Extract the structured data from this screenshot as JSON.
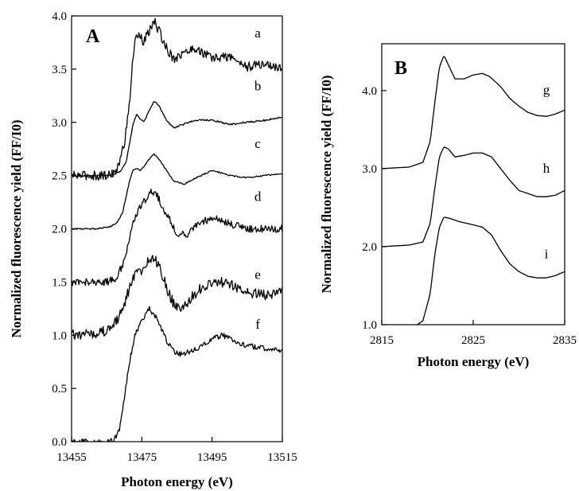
{
  "chart_data": [
    {
      "type": "line",
      "panel_label": "A",
      "xlabel": "Photon energy (eV)",
      "ylabel": "Normalized fluorescence yield (FF/I0)",
      "xlim": [
        13455,
        13515
      ],
      "ylim": [
        0.0,
        4.0
      ],
      "x_ticks": [
        13455,
        13475,
        13495,
        13515
      ],
      "x_tick_labels": [
        "13455",
        "13475",
        "13495",
        "13515"
      ],
      "y_ticks": [
        0.0,
        0.5,
        1.0,
        1.5,
        2.0,
        2.5,
        3.0,
        3.5,
        4.0
      ],
      "y_tick_labels": [
        "0.0",
        "0.5",
        "1.0",
        "1.5",
        "2.0",
        "2.5",
        "3.0",
        "3.5",
        "4.0"
      ],
      "series": [
        {
          "name": "a",
          "noise": 0.045,
          "x": [
            13455,
            13465,
            13468,
            13470,
            13471.5,
            13472.5,
            13473.5,
            13474.5,
            13475.5,
            13477,
            13478.5,
            13480,
            13482,
            13484,
            13487,
            13490,
            13495,
            13500,
            13505,
            13510,
            13515
          ],
          "y": [
            2.5,
            2.5,
            2.55,
            2.8,
            3.2,
            3.6,
            3.85,
            3.8,
            3.75,
            3.85,
            3.95,
            3.85,
            3.7,
            3.6,
            3.65,
            3.7,
            3.6,
            3.62,
            3.52,
            3.55,
            3.5
          ]
        },
        {
          "name": "b",
          "noise": 0.008,
          "x": [
            13455,
            13465,
            13467,
            13469,
            13470.5,
            13471.5,
            13472.5,
            13473.5,
            13474.5,
            13475.5,
            13477,
            13478.5,
            13480,
            13482,
            13484,
            13486,
            13490,
            13495,
            13500,
            13505,
            13510,
            13515
          ],
          "y": [
            2.5,
            2.5,
            2.51,
            2.54,
            2.62,
            2.8,
            2.98,
            3.08,
            3.03,
            3.0,
            3.1,
            3.2,
            3.15,
            3.02,
            2.95,
            2.97,
            3.02,
            3.02,
            2.98,
            3.0,
            3.02,
            3.05
          ]
        },
        {
          "name": "c",
          "noise": 0.006,
          "x": [
            13455,
            13462,
            13466,
            13468,
            13469.5,
            13470.5,
            13471.5,
            13472.5,
            13473.5,
            13474.5,
            13475.5,
            13477,
            13478.5,
            13480,
            13482,
            13484,
            13487,
            13490,
            13495,
            13500,
            13505,
            13510,
            13515
          ],
          "y": [
            2.0,
            2.0,
            2.02,
            2.06,
            2.15,
            2.3,
            2.45,
            2.55,
            2.57,
            2.55,
            2.58,
            2.65,
            2.7,
            2.65,
            2.55,
            2.45,
            2.42,
            2.47,
            2.55,
            2.5,
            2.48,
            2.5,
            2.52
          ]
        },
        {
          "name": "d",
          "noise": 0.035,
          "x": [
            13455,
            13465,
            13468,
            13470,
            13471.5,
            13472.5,
            13473.5,
            13475,
            13476.5,
            13478,
            13479.5,
            13481,
            13483,
            13485,
            13488,
            13491,
            13495,
            13500,
            13505,
            13510,
            13515
          ],
          "y": [
            1.5,
            1.5,
            1.55,
            1.7,
            1.9,
            2.05,
            2.15,
            2.22,
            2.3,
            2.35,
            2.3,
            2.2,
            2.08,
            1.95,
            1.95,
            2.05,
            2.1,
            2.05,
            2.0,
            2.0,
            2.0
          ]
        },
        {
          "name": "e",
          "noise": 0.05,
          "x": [
            13455,
            13462,
            13466,
            13468,
            13470,
            13471.5,
            13473,
            13474.5,
            13476,
            13477.5,
            13479,
            13480.5,
            13482,
            13484,
            13486,
            13489,
            13492,
            13495,
            13498,
            13502,
            13506,
            13510,
            13515
          ],
          "y": [
            1.0,
            1.02,
            1.05,
            1.15,
            1.3,
            1.45,
            1.55,
            1.6,
            1.65,
            1.72,
            1.7,
            1.6,
            1.45,
            1.3,
            1.25,
            1.35,
            1.45,
            1.5,
            1.5,
            1.45,
            1.4,
            1.38,
            1.4
          ]
        },
        {
          "name": "f",
          "noise": 0.025,
          "x": [
            13455,
            13465,
            13467,
            13468.5,
            13470,
            13471.5,
            13473,
            13474.5,
            13476,
            13477,
            13478.5,
            13480,
            13482,
            13484,
            13486,
            13489,
            13492,
            13495,
            13498,
            13501,
            13505,
            13510,
            13515
          ],
          "y": [
            0.0,
            0.0,
            0.02,
            0.1,
            0.4,
            0.75,
            1.0,
            1.1,
            1.2,
            1.25,
            1.2,
            1.1,
            0.95,
            0.85,
            0.82,
            0.85,
            0.9,
            0.97,
            1.0,
            0.95,
            0.9,
            0.88,
            0.85
          ]
        }
      ],
      "curve_label_positions": [
        {
          "name": "a",
          "x": 13508,
          "y": 3.8
        },
        {
          "name": "b",
          "x": 13508,
          "y": 3.3
        },
        {
          "name": "c",
          "x": 13508,
          "y": 2.76
        },
        {
          "name": "d",
          "x": 13508,
          "y": 2.26
        },
        {
          "name": "e",
          "x": 13508,
          "y": 1.53
        },
        {
          "name": "f",
          "x": 13508,
          "y": 1.06
        }
      ]
    },
    {
      "type": "line",
      "panel_label": "B",
      "xlabel": "Photon energy (eV)",
      "ylabel": "Normalized fluorescence yield (FF/I0)",
      "xlim": [
        2815,
        2835
      ],
      "ylim": [
        1.0,
        4.6
      ],
      "x_ticks": [
        2815,
        2825,
        2835
      ],
      "x_tick_labels": [
        "2815",
        "2825",
        "2835"
      ],
      "y_ticks": [
        1.0,
        2.0,
        3.0,
        4.0
      ],
      "y_tick_labels": [
        "1.0",
        "2.0",
        "3.0",
        "4.0"
      ],
      "series": [
        {
          "name": "g",
          "noise": 0,
          "x": [
            2815,
            2818,
            2819.5,
            2820.3,
            2820.8,
            2821.3,
            2821.8,
            2822.2,
            2823,
            2824,
            2825,
            2826,
            2826.8,
            2828,
            2829,
            2830,
            2831,
            2832,
            2833,
            2834,
            2835
          ],
          "y": [
            3.0,
            3.02,
            3.08,
            3.35,
            3.85,
            4.3,
            4.45,
            4.35,
            4.15,
            4.15,
            4.2,
            4.22,
            4.18,
            4.05,
            3.9,
            3.8,
            3.72,
            3.68,
            3.67,
            3.7,
            3.75
          ]
        },
        {
          "name": "h",
          "noise": 0,
          "x": [
            2815,
            2818,
            2819.5,
            2820.3,
            2820.8,
            2821.3,
            2821.8,
            2822.3,
            2823,
            2824,
            2825,
            2826,
            2827,
            2828,
            2829,
            2830,
            2831,
            2832,
            2833,
            2834,
            2835
          ],
          "y": [
            2.0,
            2.02,
            2.06,
            2.3,
            2.75,
            3.15,
            3.28,
            3.25,
            3.15,
            3.17,
            3.2,
            3.2,
            3.15,
            3.0,
            2.85,
            2.72,
            2.68,
            2.64,
            2.64,
            2.66,
            2.72
          ]
        },
        {
          "name": "i",
          "noise": 0,
          "x": [
            2815,
            2817,
            2818.5,
            2819.5,
            2820.3,
            2820.8,
            2821.3,
            2821.8,
            2822.5,
            2823.5,
            2825,
            2826,
            2827,
            2828,
            2829,
            2830,
            2831,
            2832,
            2833,
            2834,
            2835
          ],
          "y": [
            0.9,
            0.93,
            0.97,
            1.05,
            1.4,
            1.9,
            2.25,
            2.38,
            2.36,
            2.32,
            2.28,
            2.25,
            2.15,
            1.95,
            1.78,
            1.68,
            1.62,
            1.6,
            1.6,
            1.63,
            1.68
          ]
        }
      ],
      "curve_label_positions": [
        {
          "name": "g",
          "x": 2833,
          "y": 3.95
        },
        {
          "name": "h",
          "x": 2833,
          "y": 2.95
        },
        {
          "name": "i",
          "x": 2833,
          "y": 1.85
        }
      ]
    }
  ]
}
